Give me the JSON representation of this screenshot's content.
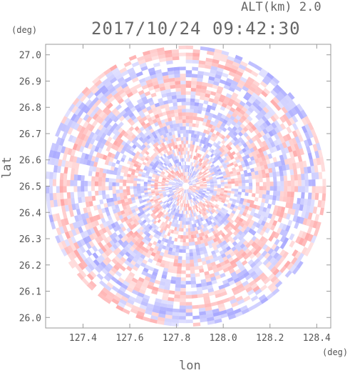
{
  "header": {
    "alt_label": "ALT(km) 2.0",
    "timestamp": "2017/10/24 09:42:30"
  },
  "axes": {
    "y_unit": "(deg)",
    "x_unit": "(deg)",
    "xlabel": "lon",
    "ylabel": "lat"
  },
  "chart_data": {
    "type": "heatmap",
    "title": "2017/10/24 09:42:30",
    "subtitle": "ALT(km) 2.0",
    "xlabel": "lon",
    "ylabel": "lat",
    "xlim": [
      127.24,
      128.46
    ],
    "ylim": [
      25.96,
      27.04
    ],
    "x_ticks": [
      "127.4",
      "127.6",
      "127.8",
      "128.0",
      "128.2",
      "128.4"
    ],
    "y_ticks": [
      "26.0",
      "26.1",
      "26.2",
      "26.3",
      "26.4",
      "26.5",
      "26.6",
      "26.7",
      "26.8",
      "26.9",
      "27.0"
    ],
    "center": {
      "lon": 127.84,
      "lat": 26.5
    },
    "range_radius_deg": 0.6,
    "colors": {
      "positive": "#ff7f7f",
      "negative": "#7f7fff",
      "zero": "#ffffff"
    },
    "grid": false
  }
}
